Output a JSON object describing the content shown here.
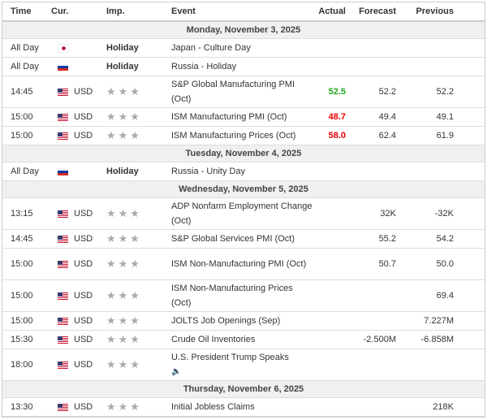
{
  "headers": {
    "time": "Time",
    "cur": "Cur.",
    "imp": "Imp.",
    "event": "Event",
    "actual": "Actual",
    "forecast": "Forecast",
    "previous": "Previous"
  },
  "colors": {
    "better": "#22aa22",
    "worse": "#ee0000"
  },
  "sections": [
    {
      "date": "Monday, November 3, 2025",
      "rows": [
        {
          "time": "All Day",
          "flag": "japan-flag",
          "cur": "",
          "imp": "Holiday",
          "event": "Japan - Culture Day",
          "actual": "",
          "forecast": "",
          "previous": ""
        },
        {
          "time": "All Day",
          "flag": "russia-flag",
          "cur": "",
          "imp": "Holiday",
          "event": "Russia - Holiday",
          "actual": "",
          "forecast": "",
          "previous": ""
        },
        {
          "time": "14:45",
          "flag": "us-flag",
          "cur": "USD",
          "stars": "★★★",
          "event": "S&P Global Manufacturing PMI (Oct)",
          "actual": "52.5",
          "actual_color": "green",
          "forecast": "52.2",
          "previous": "52.2",
          "tall": true
        },
        {
          "time": "15:00",
          "flag": "us-flag",
          "cur": "USD",
          "stars": "★★★",
          "event": "ISM Manufacturing PMI (Oct)",
          "actual": "48.7",
          "actual_color": "red",
          "forecast": "49.4",
          "previous": "49.1"
        },
        {
          "time": "15:00",
          "flag": "us-flag",
          "cur": "USD",
          "stars": "★★★",
          "event": "ISM Manufacturing Prices (Oct)",
          "actual": "58.0",
          "actual_color": "red",
          "forecast": "62.4",
          "previous": "61.9"
        }
      ]
    },
    {
      "date": "Tuesday, November 4, 2025",
      "rows": [
        {
          "time": "All Day",
          "flag": "russia-flag",
          "cur": "",
          "imp": "Holiday",
          "event": "Russia - Unity Day",
          "actual": "",
          "forecast": "",
          "previous": ""
        }
      ]
    },
    {
      "date": "Wednesday, November 5, 2025",
      "rows": [
        {
          "time": "13:15",
          "flag": "us-flag",
          "cur": "USD",
          "stars": "★★★",
          "event": "ADP Nonfarm Employment Change (Oct)",
          "actual": "",
          "forecast": "32K",
          "previous": "-32K",
          "tall": true
        },
        {
          "time": "14:45",
          "flag": "us-flag",
          "cur": "USD",
          "stars": "★★★",
          "event": "S&P Global Services PMI (Oct)",
          "actual": "",
          "forecast": "55.2",
          "previous": "54.2"
        },
        {
          "time": "15:00",
          "flag": "us-flag",
          "cur": "USD",
          "stars": "★★★",
          "event": "ISM Non-Manufacturing PMI (Oct)",
          "actual": "",
          "forecast": "50.7",
          "previous": "50.0",
          "tall": true
        },
        {
          "time": "15:00",
          "flag": "us-flag",
          "cur": "USD",
          "stars": "★★★",
          "event": "ISM Non-Manufacturing Prices (Oct)",
          "actual": "",
          "forecast": "",
          "previous": "69.4",
          "tall": true
        },
        {
          "time": "15:00",
          "flag": "us-flag",
          "cur": "USD",
          "stars": "★★★",
          "event": "JOLTS Job Openings (Sep)",
          "actual": "",
          "forecast": "",
          "previous": "7.227M"
        },
        {
          "time": "15:30",
          "flag": "us-flag",
          "cur": "USD",
          "stars": "★★★",
          "event": "Crude Oil Inventories",
          "actual": "",
          "forecast": "-2.500M",
          "previous": "-6.858M"
        },
        {
          "time": "18:00",
          "flag": "us-flag",
          "cur": "USD",
          "stars": "★★★",
          "event": "U.S. President Trump Speaks",
          "speaker": true,
          "actual": "",
          "forecast": "",
          "previous": "",
          "tall": true
        }
      ]
    },
    {
      "date": "Thursday, November 6, 2025",
      "rows": [
        {
          "time": "13:30",
          "flag": "us-flag",
          "cur": "USD",
          "stars": "★★★",
          "event": "Initial Jobless Claims",
          "actual": "",
          "forecast": "",
          "previous": "218K"
        }
      ]
    }
  ]
}
